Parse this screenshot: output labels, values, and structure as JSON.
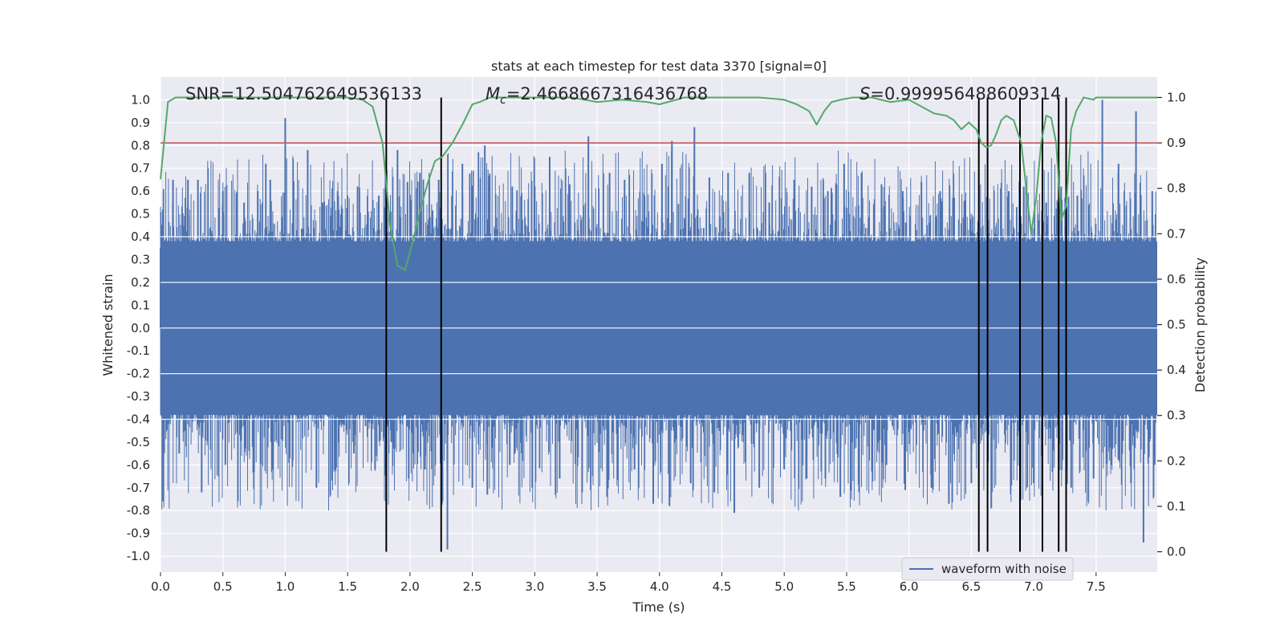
{
  "chart_data": {
    "type": "line",
    "title": "stats at each timestep for test data 3370 [signal=0]",
    "xlabel": "Time (s)",
    "ylabel": "Whitened strain",
    "ylabel_right": "Detection probability",
    "xlim": [
      0.0,
      7.99
    ],
    "ylim": [
      -1.07,
      1.1
    ],
    "ylim_right": [
      -0.045,
      1.045
    ],
    "xticks": [
      "0.0",
      "0.5",
      "1.0",
      "1.5",
      "2.0",
      "2.5",
      "3.0",
      "3.5",
      "4.0",
      "4.5",
      "5.0",
      "5.5",
      "6.0",
      "6.5",
      "7.0",
      "7.5"
    ],
    "yticks": [
      "-1.0",
      "-0.9",
      "-0.8",
      "-0.7",
      "-0.6",
      "-0.5",
      "-0.4",
      "-0.3",
      "-0.2",
      "-0.1",
      "0.0",
      "0.1",
      "0.2",
      "0.3",
      "0.4",
      "0.5",
      "0.6",
      "0.7",
      "0.8",
      "0.9",
      "1.0"
    ],
    "yticks_right": [
      "0.0",
      "0.1",
      "0.2",
      "0.3",
      "0.4",
      "0.5",
      "0.6",
      "0.7",
      "0.8",
      "0.9",
      "1.0"
    ],
    "grid": true,
    "legend": {
      "location": "lower-right",
      "entries": [
        "waveform with noise"
      ]
    },
    "annotations": {
      "snr": "SNR=12.504762649536133",
      "mc_symbol": "M",
      "mc_sub": "c",
      "mc_value": "=2.4668667316436768",
      "s_symbol": "S",
      "s_value": "=0.999956488609314"
    },
    "threshold": {
      "value": 0.9,
      "axis": "right",
      "color": "#c44e52"
    },
    "detection_markers_s": [
      1.81,
      2.25,
      6.56,
      6.63,
      6.89,
      7.07,
      7.2,
      7.26
    ],
    "waveform": {
      "name": "waveform with noise",
      "color": "#4c72b0",
      "band": 0.38,
      "peaks_positive": [
        [
          0.0,
          0.35
        ],
        [
          0.1,
          0.65
        ],
        [
          0.22,
          0.65
        ],
        [
          0.3,
          0.65
        ],
        [
          0.5,
          0.6
        ],
        [
          0.67,
          0.55
        ],
        [
          0.78,
          0.6
        ],
        [
          0.88,
          0.65
        ],
        [
          1.0,
          0.92
        ],
        [
          1.18,
          0.78
        ],
        [
          1.3,
          0.55
        ],
        [
          1.42,
          0.6
        ],
        [
          1.58,
          0.62
        ],
        [
          1.75,
          0.58
        ],
        [
          1.9,
          0.78
        ],
        [
          1.98,
          0.64
        ],
        [
          2.08,
          0.68
        ],
        [
          2.23,
          0.65
        ],
        [
          2.42,
          0.72
        ],
        [
          2.6,
          0.8
        ],
        [
          2.82,
          0.62
        ],
        [
          3.0,
          0.62
        ],
        [
          3.12,
          0.75
        ],
        [
          3.28,
          0.63
        ],
        [
          3.43,
          0.84
        ],
        [
          3.6,
          0.68
        ],
        [
          3.72,
          0.65
        ],
        [
          3.88,
          0.58
        ],
        [
          4.02,
          0.72
        ],
        [
          4.1,
          0.82
        ],
        [
          4.28,
          0.88
        ],
        [
          4.4,
          0.66
        ],
        [
          4.55,
          0.68
        ],
        [
          4.72,
          0.68
        ],
        [
          4.88,
          0.55
        ],
        [
          5.08,
          0.65
        ],
        [
          5.22,
          0.62
        ],
        [
          5.35,
          0.6
        ],
        [
          5.48,
          0.72
        ],
        [
          5.62,
          0.68
        ],
        [
          5.78,
          0.63
        ],
        [
          5.95,
          0.6
        ],
        [
          6.1,
          0.64
        ],
        [
          6.25,
          0.6
        ],
        [
          6.45,
          0.56
        ],
        [
          6.63,
          0.78
        ],
        [
          6.8,
          0.6
        ],
        [
          6.92,
          0.62
        ],
        [
          7.1,
          0.55
        ],
        [
          7.22,
          0.62
        ],
        [
          7.35,
          0.58
        ],
        [
          7.55,
          1.0
        ],
        [
          7.68,
          0.72
        ],
        [
          7.82,
          0.95
        ],
        [
          7.95,
          0.6
        ]
      ],
      "peaks_negative": [
        [
          0.02,
          -0.76
        ],
        [
          0.15,
          -0.55
        ],
        [
          0.33,
          -0.72
        ],
        [
          0.52,
          -0.6
        ],
        [
          0.75,
          -0.63
        ],
        [
          0.9,
          -0.62
        ],
        [
          1.06,
          -0.58
        ],
        [
          1.25,
          -0.7
        ],
        [
          1.4,
          -0.62
        ],
        [
          1.55,
          -0.55
        ],
        [
          1.72,
          -0.62
        ],
        [
          1.85,
          -0.5
        ],
        [
          1.99,
          -0.66
        ],
        [
          2.12,
          -0.62
        ],
        [
          2.3,
          -0.97
        ],
        [
          2.5,
          -0.7
        ],
        [
          2.62,
          -0.73
        ],
        [
          2.8,
          -0.6
        ],
        [
          2.98,
          -0.7
        ],
        [
          3.2,
          -0.66
        ],
        [
          3.38,
          -0.72
        ],
        [
          3.58,
          -0.74
        ],
        [
          3.8,
          -0.62
        ],
        [
          3.95,
          -0.77
        ],
        [
          4.08,
          -0.78
        ],
        [
          4.25,
          -0.68
        ],
        [
          4.44,
          -0.72
        ],
        [
          4.6,
          -0.81
        ],
        [
          4.8,
          -0.7
        ],
        [
          5.0,
          -0.62
        ],
        [
          5.18,
          -0.66
        ],
        [
          5.33,
          -0.66
        ],
        [
          5.45,
          -0.74
        ],
        [
          5.6,
          -0.72
        ],
        [
          5.82,
          -0.6
        ],
        [
          5.97,
          -0.71
        ],
        [
          6.18,
          -0.7
        ],
        [
          6.32,
          -0.77
        ],
        [
          6.5,
          -0.68
        ],
        [
          6.66,
          -0.79
        ],
        [
          6.82,
          -0.69
        ],
        [
          7.0,
          -0.68
        ],
        [
          7.15,
          -0.63
        ],
        [
          7.3,
          -0.7
        ],
        [
          7.48,
          -0.66
        ],
        [
          7.62,
          -0.6
        ],
        [
          7.78,
          -0.68
        ],
        [
          7.88,
          -0.94
        ],
        [
          7.97,
          -0.6
        ]
      ]
    },
    "detection_probability": {
      "name": "Detection probability",
      "color": "#55a868",
      "x": [
        0.0,
        0.06,
        0.12,
        0.5,
        1.0,
        1.5,
        1.62,
        1.7,
        1.78,
        1.84,
        1.9,
        1.96,
        2.02,
        2.08,
        2.14,
        2.2,
        2.26,
        2.34,
        2.42,
        2.5,
        2.56,
        2.64,
        3.0,
        3.3,
        3.4,
        3.5,
        3.7,
        3.9,
        4.0,
        4.2,
        4.5,
        4.8,
        5.0,
        5.1,
        5.2,
        5.26,
        5.32,
        5.38,
        5.45,
        5.55,
        5.7,
        5.85,
        6.0,
        6.1,
        6.2,
        6.3,
        6.36,
        6.42,
        6.48,
        6.54,
        6.58,
        6.62,
        6.66,
        6.7,
        6.74,
        6.78,
        6.84,
        6.9,
        6.94,
        6.98,
        7.02,
        7.06,
        7.1,
        7.14,
        7.18,
        7.22,
        7.26,
        7.3,
        7.34,
        7.4,
        7.48,
        7.5,
        7.6,
        7.7,
        7.99
      ],
      "y": [
        0.82,
        0.99,
        1.0,
        1.0,
        1.0,
        1.0,
        0.995,
        0.98,
        0.9,
        0.72,
        0.63,
        0.62,
        0.68,
        0.75,
        0.81,
        0.86,
        0.87,
        0.9,
        0.94,
        0.985,
        0.99,
        1.0,
        1.0,
        1.0,
        0.995,
        0.99,
        0.995,
        0.99,
        0.985,
        1.0,
        1.0,
        1.0,
        0.995,
        0.985,
        0.97,
        0.94,
        0.97,
        0.99,
        0.995,
        1.0,
        1.0,
        0.99,
        0.995,
        0.98,
        0.965,
        0.96,
        0.95,
        0.93,
        0.945,
        0.93,
        0.9,
        0.89,
        0.895,
        0.92,
        0.95,
        0.96,
        0.95,
        0.9,
        0.8,
        0.7,
        0.78,
        0.9,
        0.96,
        0.955,
        0.9,
        0.73,
        0.76,
        0.93,
        0.97,
        1.0,
        0.995,
        1.0,
        1.0,
        1.0,
        1.0
      ]
    }
  }
}
